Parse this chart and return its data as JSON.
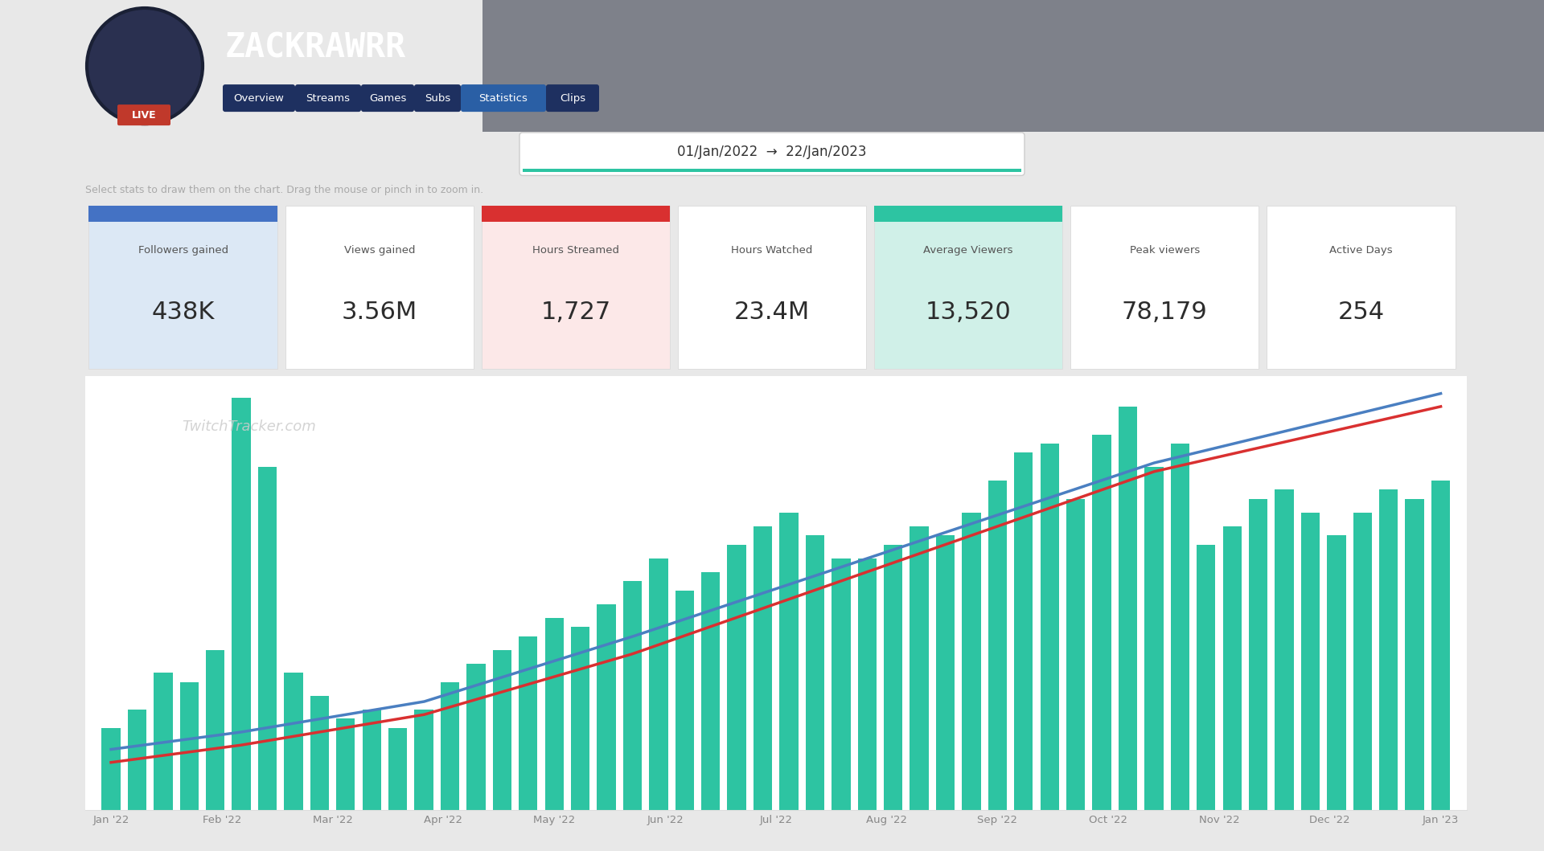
{
  "title": "ZACKRAWRR",
  "date_range": "01/Jan/2022  →  22/Jan/2023",
  "stats": [
    {
      "label": "Followers gained",
      "value": "438K",
      "highlight": "blue"
    },
    {
      "label": "Views gained",
      "value": "3.56M",
      "highlight": "none"
    },
    {
      "label": "Hours Streamed",
      "value": "1,727",
      "highlight": "red"
    },
    {
      "label": "Hours Watched",
      "value": "23.4M",
      "highlight": "none"
    },
    {
      "label": "Average Viewers",
      "value": "13,520",
      "highlight": "teal"
    },
    {
      "label": "Peak viewers",
      "value": "78,179",
      "highlight": "none"
    },
    {
      "label": "Active Days",
      "value": "254",
      "highlight": "none"
    }
  ],
  "x_labels": [
    "Jan '22",
    "Feb '22",
    "Mar '22",
    "Apr '22",
    "May '22",
    "Jun '22",
    "Jul '22",
    "Aug '22",
    "Sep '22",
    "Oct '22",
    "Nov '22",
    "Dec '22",
    "Jan '23"
  ],
  "bar_color": "#2dc4a2",
  "blue_line_color": "#4a7fc1",
  "red_line_color": "#d93030",
  "watermark": "TwitchTracker.com",
  "nav_items": [
    "Overview",
    "Streams",
    "Games",
    "Subs",
    "Statistics",
    "Clips"
  ],
  "active_nav": "Statistics",
  "bg_color": "#1a2035",
  "page_bg": "#e8e8e8",
  "stats_bg": "#f5f5f5",
  "chart_bg": "#ffffff",
  "highlight_colors": {
    "blue": [
      "#dce8f5",
      "#4472c4"
    ],
    "red": [
      "#fce8e8",
      "#d93030"
    ],
    "teal": [
      "#d0f0e8",
      "#2dc4a2"
    ],
    "none": [
      "#ffffff",
      null
    ]
  },
  "instruction_text": "Select stats to draw them on the chart. Drag the mouse or pinch in to zoom in."
}
